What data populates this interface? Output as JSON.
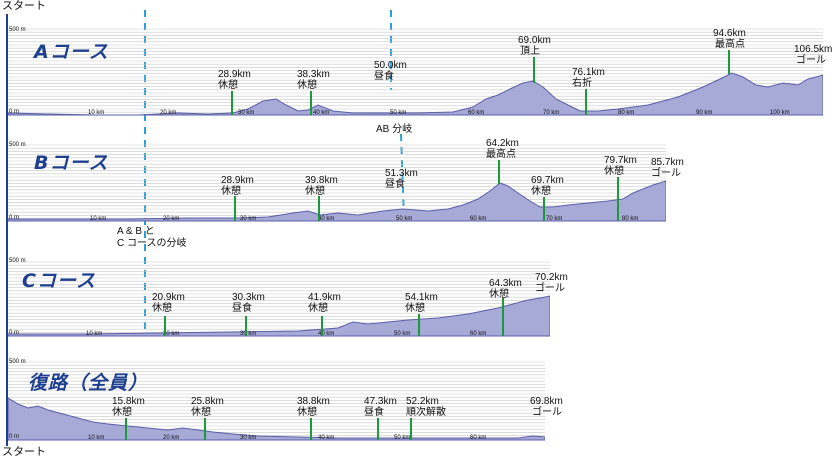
{
  "start_top": "スタート",
  "start_bottom": "スタート",
  "branch_ab": "AB 分岐",
  "branch_abc_line1": "A & B と",
  "branch_abc_line2": "C コースの分岐",
  "courses": [
    {
      "id": "a",
      "title": "Aコース",
      "axis_top": "500 m",
      "axis_zero": "0 m",
      "x_ticks": [
        "10 km",
        "20 km",
        "30 km",
        "40 km",
        "50 km",
        "60 km",
        "70 km",
        "80 km",
        "90 km",
        "100 km"
      ],
      "markers": [
        {
          "km": "28.9km",
          "label": "休憩"
        },
        {
          "km": "38.3km",
          "label": "休憩"
        },
        {
          "km": "50.0km",
          "label": "昼食"
        },
        {
          "km": "69.0km",
          "label": "頂上"
        },
        {
          "km": "76.1km",
          "label": "右折"
        },
        {
          "km": "94.6km",
          "label": "最高点"
        },
        {
          "km": "106.5km",
          "label": "ゴール"
        }
      ]
    },
    {
      "id": "b",
      "title": "Bコース",
      "axis_top": "500 m",
      "axis_zero": "0 m",
      "x_ticks": [
        "10 km",
        "20 km",
        "30 km",
        "40 km",
        "50 km",
        "60 km",
        "70 km",
        "80 km"
      ],
      "markers": [
        {
          "km": "28.9km",
          "label": "休憩"
        },
        {
          "km": "39.8km",
          "label": "休憩"
        },
        {
          "km": "51.3km",
          "label": "昼食"
        },
        {
          "km": "64.2km",
          "label": "最高点"
        },
        {
          "km": "69.7km",
          "label": "休憩"
        },
        {
          "km": "79.7km",
          "label": "休憩"
        },
        {
          "km": "85.7km",
          "label": "ゴール"
        }
      ]
    },
    {
      "id": "c",
      "title": "Cコース",
      "axis_top": "500 m",
      "axis_zero": "0 m",
      "x_ticks": [
        "10 km",
        "20 km",
        "30 km",
        "40 km",
        "50 km",
        "60 km"
      ],
      "markers": [
        {
          "km": "20.9km",
          "label": "休憩"
        },
        {
          "km": "30.3km",
          "label": "昼食"
        },
        {
          "km": "41.9km",
          "label": "休憩"
        },
        {
          "km": "54.1km",
          "label": "休憩"
        },
        {
          "km": "64.3km",
          "label": "休憩"
        },
        {
          "km": "70.2km",
          "label": "ゴール"
        }
      ]
    },
    {
      "id": "ret",
      "title": "復路（全員）",
      "axis_top": "500 m",
      "axis_zero": "0 m",
      "x_ticks": [
        "10 km",
        "20 km",
        "30 km",
        "40 km",
        "50 km",
        "60 km"
      ],
      "markers": [
        {
          "km": "15.8km",
          "label": "休憩"
        },
        {
          "km": "25.8km",
          "label": "休憩"
        },
        {
          "km": "38.8km",
          "label": "休憩"
        },
        {
          "km": "47.3km",
          "label": "昼食"
        },
        {
          "km": "52.2km",
          "label": "順次解散"
        },
        {
          "km": "69.8km",
          "label": "ゴール"
        }
      ]
    }
  ],
  "colors": {
    "fill": "#a7a9d6",
    "stroke": "#5a5fa8",
    "marker": "#1a9a3a",
    "dash": "#2a9fd6",
    "title": "#1e3f8f",
    "axis": "#1e3f8f"
  }
}
